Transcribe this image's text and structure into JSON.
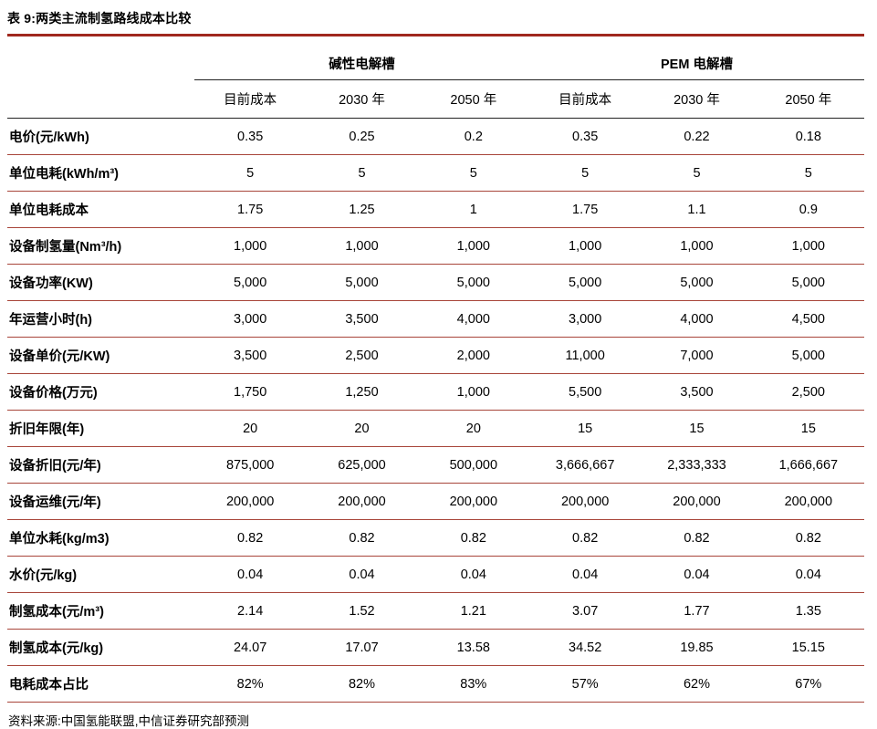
{
  "title": "表 9:两类主流制氢路线成本比较",
  "source": "资料来源:中国氢能联盟,中信证券研究部预测",
  "colors": {
    "title_rule": "#a0281e",
    "header_line": "#222222",
    "row_line": "#a8453a",
    "text": "#000000"
  },
  "table": {
    "groups": [
      {
        "label": "碱性电解槽"
      },
      {
        "label": "PEM 电解槽"
      }
    ],
    "subheaders": [
      "目前成本",
      "2030 年",
      "2050 年",
      "目前成本",
      "2030 年",
      "2050 年"
    ],
    "rows": [
      {
        "label": "电价(元/kWh)",
        "values": [
          "0.35",
          "0.25",
          "0.2",
          "0.35",
          "0.22",
          "0.18"
        ]
      },
      {
        "label": "单位电耗(kWh/m³)",
        "values": [
          "5",
          "5",
          "5",
          "5",
          "5",
          "5"
        ]
      },
      {
        "label": "单位电耗成本",
        "values": [
          "1.75",
          "1.25",
          "1",
          "1.75",
          "1.1",
          "0.9"
        ]
      },
      {
        "label": "设备制氢量(Nm³/h)",
        "values": [
          "1,000",
          "1,000",
          "1,000",
          "1,000",
          "1,000",
          "1,000"
        ]
      },
      {
        "label": "设备功率(KW)",
        "values": [
          "5,000",
          "5,000",
          "5,000",
          "5,000",
          "5,000",
          "5,000"
        ]
      },
      {
        "label": "年运营小时(h)",
        "values": [
          "3,000",
          "3,500",
          "4,000",
          "3,000",
          "4,000",
          "4,500"
        ]
      },
      {
        "label": "设备单价(元/KW)",
        "values": [
          "3,500",
          "2,500",
          "2,000",
          "11,000",
          "7,000",
          "5,000"
        ]
      },
      {
        "label": "设备价格(万元)",
        "values": [
          "1,750",
          "1,250",
          "1,000",
          "5,500",
          "3,500",
          "2,500"
        ]
      },
      {
        "label": "折旧年限(年)",
        "values": [
          "20",
          "20",
          "20",
          "15",
          "15",
          "15"
        ]
      },
      {
        "label": "设备折旧(元/年)",
        "values": [
          "875,000",
          "625,000",
          "500,000",
          "3,666,667",
          "2,333,333",
          "1,666,667"
        ]
      },
      {
        "label": "设备运维(元/年)",
        "values": [
          "200,000",
          "200,000",
          "200,000",
          "200,000",
          "200,000",
          "200,000"
        ]
      },
      {
        "label": "单位水耗(kg/m3)",
        "values": [
          "0.82",
          "0.82",
          "0.82",
          "0.82",
          "0.82",
          "0.82"
        ]
      },
      {
        "label": "水价(元/kg)",
        "values": [
          "0.04",
          "0.04",
          "0.04",
          "0.04",
          "0.04",
          "0.04"
        ]
      },
      {
        "label": "制氢成本(元/m³)",
        "values": [
          "2.14",
          "1.52",
          "1.21",
          "3.07",
          "1.77",
          "1.35"
        ]
      },
      {
        "label": "制氢成本(元/kg)",
        "values": [
          "24.07",
          "17.07",
          "13.58",
          "34.52",
          "19.85",
          "15.15"
        ]
      },
      {
        "label": "电耗成本占比",
        "values": [
          "82%",
          "82%",
          "83%",
          "57%",
          "62%",
          "67%"
        ]
      }
    ]
  }
}
